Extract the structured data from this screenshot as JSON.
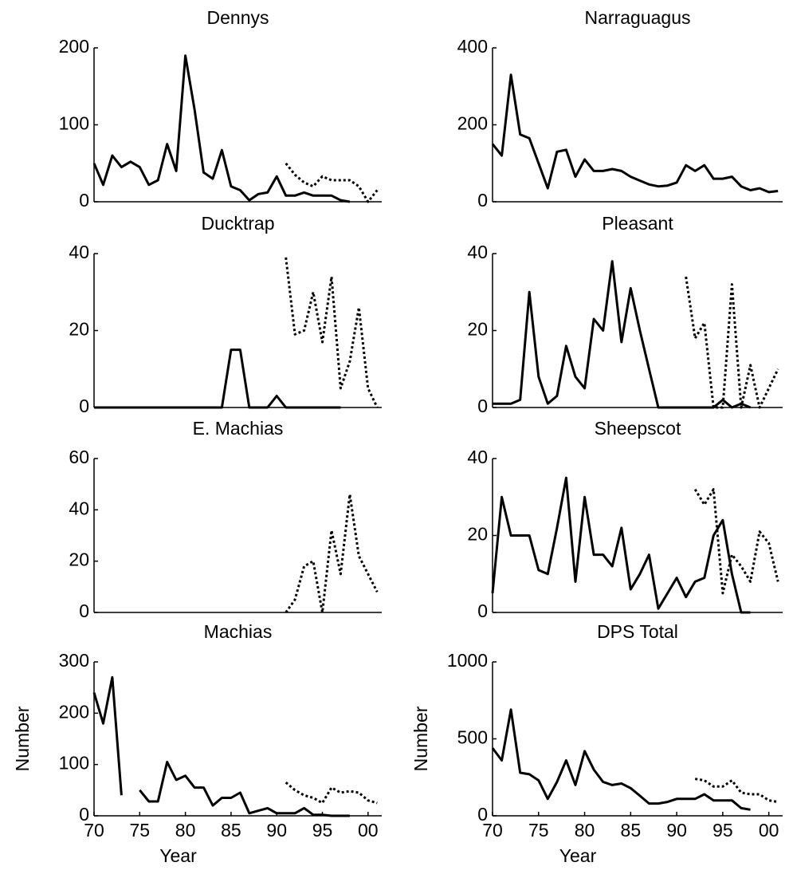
{
  "chart_data": [
    {
      "type": "line",
      "title": "Dennys",
      "x": [
        70,
        71,
        72,
        73,
        74,
        75,
        76,
        77,
        78,
        79,
        80,
        81,
        82,
        83,
        84,
        85,
        86,
        87,
        88,
        89,
        90,
        91,
        92,
        93,
        94,
        95,
        96,
        97,
        98,
        99,
        100,
        101
      ],
      "series": [
        {
          "color": "#000000",
          "dash": "solid",
          "values": [
            50,
            22,
            60,
            45,
            52,
            45,
            22,
            28,
            75,
            40,
            190,
            120,
            38,
            30,
            67,
            20,
            15,
            2,
            10,
            12,
            33,
            8,
            8,
            12,
            8,
            8,
            8,
            2,
            0,
            null,
            null,
            null
          ]
        },
        {
          "color": "#000000",
          "dash": "dotted",
          "values": [
            null,
            null,
            null,
            null,
            null,
            null,
            null,
            null,
            null,
            null,
            null,
            null,
            null,
            null,
            null,
            null,
            null,
            null,
            null,
            null,
            null,
            50,
            35,
            25,
            20,
            33,
            28,
            28,
            28,
            20,
            0,
            15
          ]
        }
      ],
      "xlim": [
        70,
        101.5
      ],
      "ylim": [
        0,
        200
      ],
      "yticks": [
        0,
        100,
        200
      ]
    },
    {
      "type": "line",
      "title": "Narraguagus",
      "x": [
        70,
        71,
        72,
        73,
        74,
        75,
        76,
        77,
        78,
        79,
        80,
        81,
        82,
        83,
        84,
        85,
        86,
        87,
        88,
        89,
        90,
        91,
        92,
        93,
        94,
        95,
        96,
        97,
        98,
        99,
        100,
        101
      ],
      "series": [
        {
          "color": "#000000",
          "dash": "solid",
          "values": [
            150,
            120,
            330,
            175,
            165,
            100,
            35,
            130,
            135,
            65,
            110,
            80,
            80,
            85,
            80,
            65,
            55,
            45,
            40,
            42,
            50,
            95,
            80,
            95,
            60,
            60,
            65,
            40,
            30,
            35,
            25,
            28
          ]
        }
      ],
      "xlim": [
        70,
        101.5
      ],
      "ylim": [
        0,
        400
      ],
      "yticks": [
        0,
        200,
        400
      ]
    },
    {
      "type": "line",
      "title": "Ducktrap",
      "x": [
        70,
        71,
        72,
        73,
        74,
        75,
        76,
        77,
        78,
        79,
        80,
        81,
        82,
        83,
        84,
        85,
        86,
        87,
        88,
        89,
        90,
        91,
        92,
        93,
        94,
        95,
        96,
        97,
        98,
        99,
        100,
        101
      ],
      "series": [
        {
          "color": "#000000",
          "dash": "solid",
          "values": [
            0,
            0,
            0,
            0,
            0,
            0,
            0,
            0,
            0,
            0,
            0,
            0,
            0,
            0,
            0,
            15,
            15,
            0,
            0,
            0,
            3,
            0,
            0,
            0,
            0,
            0,
            0,
            0,
            null,
            null,
            null,
            null
          ]
        },
        {
          "color": "#000000",
          "dash": "dotted",
          "values": [
            null,
            null,
            null,
            null,
            null,
            null,
            null,
            null,
            null,
            null,
            null,
            null,
            null,
            null,
            null,
            null,
            null,
            null,
            null,
            null,
            null,
            39,
            19,
            20,
            30,
            17,
            34,
            5,
            12,
            26,
            5,
            0
          ]
        }
      ],
      "xlim": [
        70,
        101.5
      ],
      "ylim": [
        0,
        40
      ],
      "yticks": [
        0,
        20,
        40
      ]
    },
    {
      "type": "line",
      "title": "Pleasant",
      "x": [
        70,
        71,
        72,
        73,
        74,
        75,
        76,
        77,
        78,
        79,
        80,
        81,
        82,
        83,
        84,
        85,
        86,
        87,
        88,
        89,
        90,
        91,
        92,
        93,
        94,
        95,
        96,
        97,
        98,
        99,
        100,
        101
      ],
      "series": [
        {
          "color": "#000000",
          "dash": "solid",
          "values": [
            1,
            1,
            1,
            2,
            30,
            8,
            1,
            3,
            16,
            8,
            5,
            23,
            20,
            38,
            17,
            31,
            20,
            10,
            0,
            0,
            0,
            0,
            0,
            0,
            0,
            2,
            0,
            1,
            0,
            null,
            null,
            null
          ]
        },
        {
          "color": "#000000",
          "dash": "dotted",
          "values": [
            null,
            null,
            null,
            null,
            null,
            null,
            null,
            null,
            null,
            null,
            null,
            null,
            null,
            null,
            null,
            null,
            null,
            null,
            null,
            null,
            null,
            34,
            18,
            22,
            0,
            0,
            32,
            0,
            11,
            0,
            5,
            10
          ]
        }
      ],
      "xlim": [
        70,
        101.5
      ],
      "ylim": [
        0,
        40
      ],
      "yticks": [
        0,
        20,
        40
      ]
    },
    {
      "type": "line",
      "title": "E. Machias",
      "x": [
        70,
        71,
        72,
        73,
        74,
        75,
        76,
        77,
        78,
        79,
        80,
        81,
        82,
        83,
        84,
        85,
        86,
        87,
        88,
        89,
        90,
        91,
        92,
        93,
        94,
        95,
        96,
        97,
        98,
        99,
        100,
        101
      ],
      "series": [
        {
          "color": "#000000",
          "dash": "dotted",
          "values": [
            null,
            null,
            null,
            null,
            null,
            null,
            null,
            null,
            null,
            null,
            null,
            null,
            null,
            null,
            null,
            null,
            null,
            null,
            null,
            null,
            null,
            0,
            5,
            18,
            20,
            0,
            32,
            15,
            46,
            22,
            15,
            8
          ]
        }
      ],
      "xlim": [
        70,
        101.5
      ],
      "ylim": [
        0,
        60
      ],
      "yticks": [
        0,
        20,
        40,
        60
      ]
    },
    {
      "type": "line",
      "title": "Sheepscot",
      "x": [
        70,
        71,
        72,
        73,
        74,
        75,
        76,
        77,
        78,
        79,
        80,
        81,
        82,
        83,
        84,
        85,
        86,
        87,
        88,
        89,
        90,
        91,
        92,
        93,
        94,
        95,
        96,
        97,
        98,
        99,
        100,
        101
      ],
      "series": [
        {
          "color": "#000000",
          "dash": "solid",
          "values": [
            5,
            30,
            20,
            20,
            20,
            11,
            10,
            22,
            35,
            8,
            30,
            15,
            15,
            12,
            22,
            6,
            10,
            15,
            1,
            5,
            9,
            4,
            8,
            9,
            20,
            24,
            10,
            0,
            0,
            null,
            null,
            null
          ]
        },
        {
          "color": "#000000",
          "dash": "dotted",
          "values": [
            null,
            null,
            null,
            null,
            null,
            null,
            null,
            null,
            null,
            null,
            null,
            null,
            null,
            null,
            null,
            null,
            null,
            null,
            null,
            null,
            null,
            null,
            32,
            28,
            32,
            5,
            15,
            12,
            8,
            21,
            18,
            8
          ]
        }
      ],
      "xlim": [
        70,
        101.5
      ],
      "ylim": [
        0,
        40
      ],
      "yticks": [
        0,
        20,
        40
      ]
    },
    {
      "type": "line",
      "title": "Machias",
      "xlabel": "Year",
      "ylabel": "Number",
      "x": [
        70,
        71,
        72,
        73,
        74,
        75,
        76,
        77,
        78,
        79,
        80,
        81,
        82,
        83,
        84,
        85,
        86,
        87,
        88,
        89,
        90,
        91,
        92,
        93,
        94,
        95,
        96,
        97,
        98,
        99,
        100,
        101
      ],
      "series": [
        {
          "color": "#000000",
          "dash": "solid",
          "values": [
            240,
            180,
            270,
            40,
            null,
            50,
            28,
            28,
            105,
            70,
            78,
            55,
            55,
            20,
            35,
            35,
            45,
            5,
            10,
            15,
            5,
            5,
            5,
            15,
            2,
            2,
            0,
            0,
            0,
            null,
            null,
            null
          ]
        },
        {
          "color": "#000000",
          "dash": "dotted",
          "values": [
            null,
            null,
            null,
            null,
            null,
            null,
            null,
            null,
            null,
            null,
            null,
            null,
            null,
            null,
            null,
            null,
            null,
            null,
            null,
            null,
            null,
            65,
            50,
            40,
            35,
            25,
            55,
            45,
            48,
            45,
            30,
            25
          ]
        }
      ],
      "xlim": [
        70,
        101.5
      ],
      "xticks": [
        70,
        75,
        80,
        85,
        90,
        95,
        {
          "value": 100,
          "label": "00"
        }
      ],
      "ylim": [
        0,
        300
      ],
      "yticks": [
        0,
        100,
        200,
        300
      ]
    },
    {
      "type": "line",
      "title": "DPS Total",
      "xlabel": "Year",
      "ylabel": "Number",
      "x": [
        70,
        71,
        72,
        73,
        74,
        75,
        76,
        77,
        78,
        79,
        80,
        81,
        82,
        83,
        84,
        85,
        86,
        87,
        88,
        89,
        90,
        91,
        92,
        93,
        94,
        95,
        96,
        97,
        98,
        99,
        100,
        101
      ],
      "series": [
        {
          "color": "#000000",
          "dash": "solid",
          "values": [
            440,
            360,
            690,
            280,
            270,
            230,
            110,
            220,
            360,
            200,
            420,
            300,
            220,
            200,
            210,
            180,
            130,
            80,
            80,
            90,
            110,
            110,
            110,
            140,
            100,
            100,
            100,
            50,
            40,
            null,
            null,
            null
          ]
        },
        {
          "color": "#000000",
          "dash": "dotted",
          "values": [
            null,
            null,
            null,
            null,
            null,
            null,
            null,
            null,
            null,
            null,
            null,
            null,
            null,
            null,
            null,
            null,
            null,
            null,
            null,
            null,
            null,
            null,
            240,
            230,
            190,
            190,
            230,
            150,
            140,
            140,
            100,
            90
          ]
        }
      ],
      "xlim": [
        70,
        101.5
      ],
      "xticks": [
        70,
        75,
        80,
        85,
        90,
        95,
        {
          "value": 100,
          "label": "00"
        }
      ],
      "ylim": [
        0,
        1000
      ],
      "yticks": [
        0,
        500,
        1000
      ]
    }
  ]
}
